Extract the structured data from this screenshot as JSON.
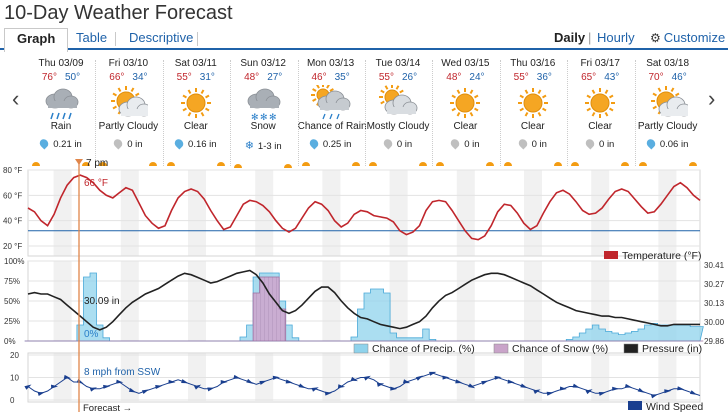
{
  "page_title": "10-Day Weather Forecast",
  "tabs": [
    {
      "label": "Graph",
      "active": true
    },
    {
      "label": "Table",
      "active": false
    },
    {
      "label": "Descriptive",
      "active": false
    }
  ],
  "view_toggle": {
    "daily": "Daily",
    "separator": "|",
    "hourly": "Hourly",
    "customize": "Customize"
  },
  "days": [
    {
      "label": "Thu 03/09",
      "hi": "76°",
      "lo": "50°",
      "icon": "rain",
      "condition": "Rain",
      "precip": "0.21 in",
      "precip_icon": "rain-drop-icon"
    },
    {
      "label": "Fri 03/10",
      "hi": "66°",
      "lo": "34°",
      "icon": "partly-cloudy",
      "condition": "Partly Cloudy",
      "precip": "0 in",
      "precip_icon": "no-rain-drop-icon"
    },
    {
      "label": "Sat 03/11",
      "hi": "55°",
      "lo": "31°",
      "icon": "clear",
      "condition": "Clear",
      "precip": "0.16 in",
      "precip_icon": "rain-drop-icon"
    },
    {
      "label": "Sun 03/12",
      "hi": "48°",
      "lo": "27°",
      "icon": "snow",
      "condition": "Snow",
      "precip": "1-3 in",
      "precip_icon": "snowflake-icon"
    },
    {
      "label": "Mon 03/13",
      "hi": "46°",
      "lo": "35°",
      "icon": "chance-rain",
      "condition": "Chance of Rain",
      "precip": "0.25 in",
      "precip_icon": "rain-drop-icon"
    },
    {
      "label": "Tue 03/14",
      "hi": "55°",
      "lo": "26°",
      "icon": "mostly-cloudy",
      "condition": "Mostly Cloudy",
      "precip": "0 in",
      "precip_icon": "no-rain-drop-icon"
    },
    {
      "label": "Wed 03/15",
      "hi": "48°",
      "lo": "24°",
      "icon": "clear",
      "condition": "Clear",
      "precip": "0 in",
      "precip_icon": "no-rain-drop-icon"
    },
    {
      "label": "Thu 03/16",
      "hi": "55°",
      "lo": "36°",
      "icon": "clear",
      "condition": "Clear",
      "precip": "0 in",
      "precip_icon": "no-rain-drop-icon"
    },
    {
      "label": "Fri 03/17",
      "hi": "65°",
      "lo": "43°",
      "icon": "clear",
      "condition": "Clear",
      "precip": "0 in",
      "precip_icon": "no-rain-drop-icon"
    },
    {
      "label": "Sat 03/18",
      "hi": "70°",
      "lo": "46°",
      "icon": "partly-cloudy",
      "condition": "Partly Cloudy",
      "precip": "0.06 in",
      "precip_icon": "rain-drop-icon"
    }
  ],
  "colors": {
    "temperature": "#c0262c",
    "freezing_line": "#1f62a9",
    "precip_chance": "#8fd3ec",
    "snow_chance": "#c9a4c9",
    "pressure": "#222222",
    "wind": "#1a3f8f",
    "current_time": "#e0864a",
    "tab_accent": "#1f62a9",
    "sun": "#f39c12"
  },
  "chart_data": [
    {
      "type": "line",
      "name": "temperature",
      "yticks": [
        "80 °F",
        "60 °F",
        "40 °F",
        "20 °F"
      ],
      "ylim": [
        20,
        80
      ],
      "freezing_line": 32,
      "legend": "Temperature (°F)",
      "current_label": "66 °F",
      "series": [
        {
          "name": "Temperature (°F)",
          "values": [
            50,
            47,
            40,
            36,
            45,
            58,
            68,
            74,
            76,
            74,
            70,
            64,
            60,
            58,
            62,
            66,
            64,
            54,
            44,
            38,
            34,
            36,
            48,
            58,
            63,
            65,
            63,
            57,
            48,
            40,
            33,
            35,
            44,
            53,
            56,
            55,
            52,
            47,
            40,
            34,
            31,
            34,
            42,
            50,
            55,
            53,
            48,
            40,
            35,
            38,
            45,
            48,
            47,
            44,
            43,
            42,
            39,
            32,
            29,
            31,
            36,
            48,
            55,
            56,
            55,
            48,
            40,
            32,
            26,
            25,
            28,
            36,
            47,
            53,
            52,
            46,
            38,
            33,
            36,
            46,
            55,
            62,
            64,
            61,
            55,
            48,
            45,
            46,
            50,
            57,
            63,
            65,
            63,
            57,
            51,
            46,
            47,
            53,
            60,
            67,
            70,
            66,
            60,
            56
          ]
        }
      ]
    },
    {
      "type": "area",
      "name": "precipitation-and-pressure",
      "yticks_left": [
        "100%",
        "75%",
        "50%",
        "25%",
        "0%"
      ],
      "yticks_right": [
        "30.41",
        "30.27",
        "30.13",
        "30.00",
        "29.86"
      ],
      "ylim_left": [
        0,
        100
      ],
      "ylim_right": [
        29.86,
        30.41
      ],
      "pressure_label": "30.09 in",
      "current_precip_label": "0%",
      "legend": [
        "Chance of Precip. (%)",
        "Chance of Snow (%)",
        "Pressure (in)"
      ],
      "series": [
        {
          "name": "Chance of Precip. (%)",
          "values": [
            0,
            0,
            0,
            0,
            0,
            0,
            0,
            0,
            20,
            80,
            85,
            20,
            4,
            0,
            0,
            0,
            0,
            0,
            0,
            0,
            0,
            0,
            0,
            0,
            0,
            0,
            0,
            0,
            0,
            0,
            0,
            0,
            0,
            5,
            20,
            80,
            85,
            85,
            85,
            50,
            20,
            4,
            0,
            0,
            0,
            0,
            0,
            0,
            0,
            0,
            5,
            40,
            60,
            65,
            65,
            60,
            10,
            4,
            4,
            4,
            4,
            15,
            2,
            0,
            0,
            0,
            0,
            0,
            0,
            0,
            0,
            0,
            0,
            0,
            0,
            0,
            0,
            0,
            0,
            0,
            0,
            0,
            0,
            2,
            5,
            10,
            15,
            20,
            15,
            12,
            10,
            8,
            10,
            12,
            15,
            20,
            22,
            20,
            20,
            20,
            20,
            20,
            18,
            18
          ]
        },
        {
          "name": "Chance of Snow (%)",
          "values": [
            0,
            0,
            0,
            0,
            0,
            0,
            0,
            0,
            0,
            0,
            0,
            0,
            0,
            0,
            0,
            0,
            0,
            0,
            0,
            0,
            0,
            0,
            0,
            0,
            0,
            0,
            0,
            0,
            0,
            0,
            0,
            0,
            0,
            0,
            0,
            60,
            80,
            80,
            80,
            40,
            0,
            0,
            0,
            0,
            0,
            0,
            0,
            0,
            0,
            0,
            0,
            0,
            0,
            0,
            0,
            0,
            0,
            0,
            0,
            0,
            0,
            0,
            0,
            0,
            0,
            0,
            0,
            0,
            0,
            0,
            0,
            0,
            0,
            0,
            0,
            0,
            0,
            0,
            0,
            0,
            0,
            0,
            0,
            0,
            0,
            0,
            0,
            0,
            0,
            0,
            0,
            0,
            0,
            0,
            0,
            0,
            0,
            0,
            0,
            0,
            0,
            0,
            0,
            0
          ]
        },
        {
          "name": "Pressure (in)",
          "values": [
            30.2,
            30.21,
            30.2,
            30.2,
            30.18,
            30.16,
            30.12,
            30.08,
            30.04,
            30.0,
            29.96,
            29.94,
            29.96,
            30.0,
            30.05,
            30.1,
            30.14,
            30.17,
            30.2,
            30.22,
            30.24,
            30.27,
            30.3,
            30.33,
            30.35,
            30.34,
            30.32,
            30.3,
            30.28,
            30.29,
            30.31,
            30.33,
            30.35,
            30.36,
            30.37,
            30.34,
            30.28,
            30.2,
            30.14,
            30.08,
            30.06,
            30.08,
            30.12,
            30.17,
            30.22,
            30.25,
            30.25,
            30.21,
            30.15,
            30.1,
            30.06,
            30.03,
            30.02,
            30.0,
            29.98,
            29.97,
            29.96,
            29.95,
            29.96,
            29.98,
            30.0,
            30.04,
            30.1,
            30.15,
            30.19,
            30.21,
            30.24,
            30.27,
            30.3,
            30.32,
            30.34,
            30.35,
            30.35,
            30.34,
            30.32,
            30.3,
            30.28,
            30.26,
            30.23,
            30.2,
            30.17,
            30.14,
            30.12,
            30.1,
            30.08,
            30.07,
            30.06,
            30.05,
            30.04,
            30.04,
            30.03,
            30.03,
            30.02,
            30.01,
            30.0,
            29.99,
            29.98,
            29.97,
            29.97,
            29.98,
            29.98,
            29.98,
            29.98,
            29.98
          ]
        }
      ]
    },
    {
      "type": "line",
      "name": "wind",
      "yticks": [
        "20",
        "10",
        "0"
      ],
      "ylim": [
        0,
        20
      ],
      "legend": "Wind Speed",
      "current_label": "8 mph from SSW",
      "series": [
        {
          "name": "Wind Speed",
          "values": [
            6,
            4,
            3,
            4,
            6,
            8,
            10,
            8,
            8,
            6,
            5,
            5,
            6,
            7,
            8,
            6,
            4,
            3,
            4,
            5,
            6,
            7,
            8,
            9,
            8,
            7,
            6,
            5,
            5,
            6,
            8,
            9,
            10,
            9,
            8,
            7,
            8,
            9,
            10,
            9,
            8,
            7,
            6,
            5,
            5,
            4,
            3,
            4,
            6,
            8,
            9,
            10,
            10,
            9,
            7,
            6,
            5,
            6,
            8,
            9,
            10,
            11,
            12,
            11,
            10,
            9,
            8,
            7,
            6,
            7,
            8,
            9,
            10,
            9,
            8,
            7,
            6,
            5,
            4,
            3,
            3,
            4,
            5,
            6,
            6,
            5,
            4,
            3,
            3,
            4,
            5,
            5,
            6,
            5,
            4,
            3,
            2,
            3,
            4,
            5,
            5,
            4,
            3,
            2
          ]
        }
      ]
    }
  ],
  "time_labels": {
    "current": "7 pm",
    "forecast": "Forecast →"
  }
}
